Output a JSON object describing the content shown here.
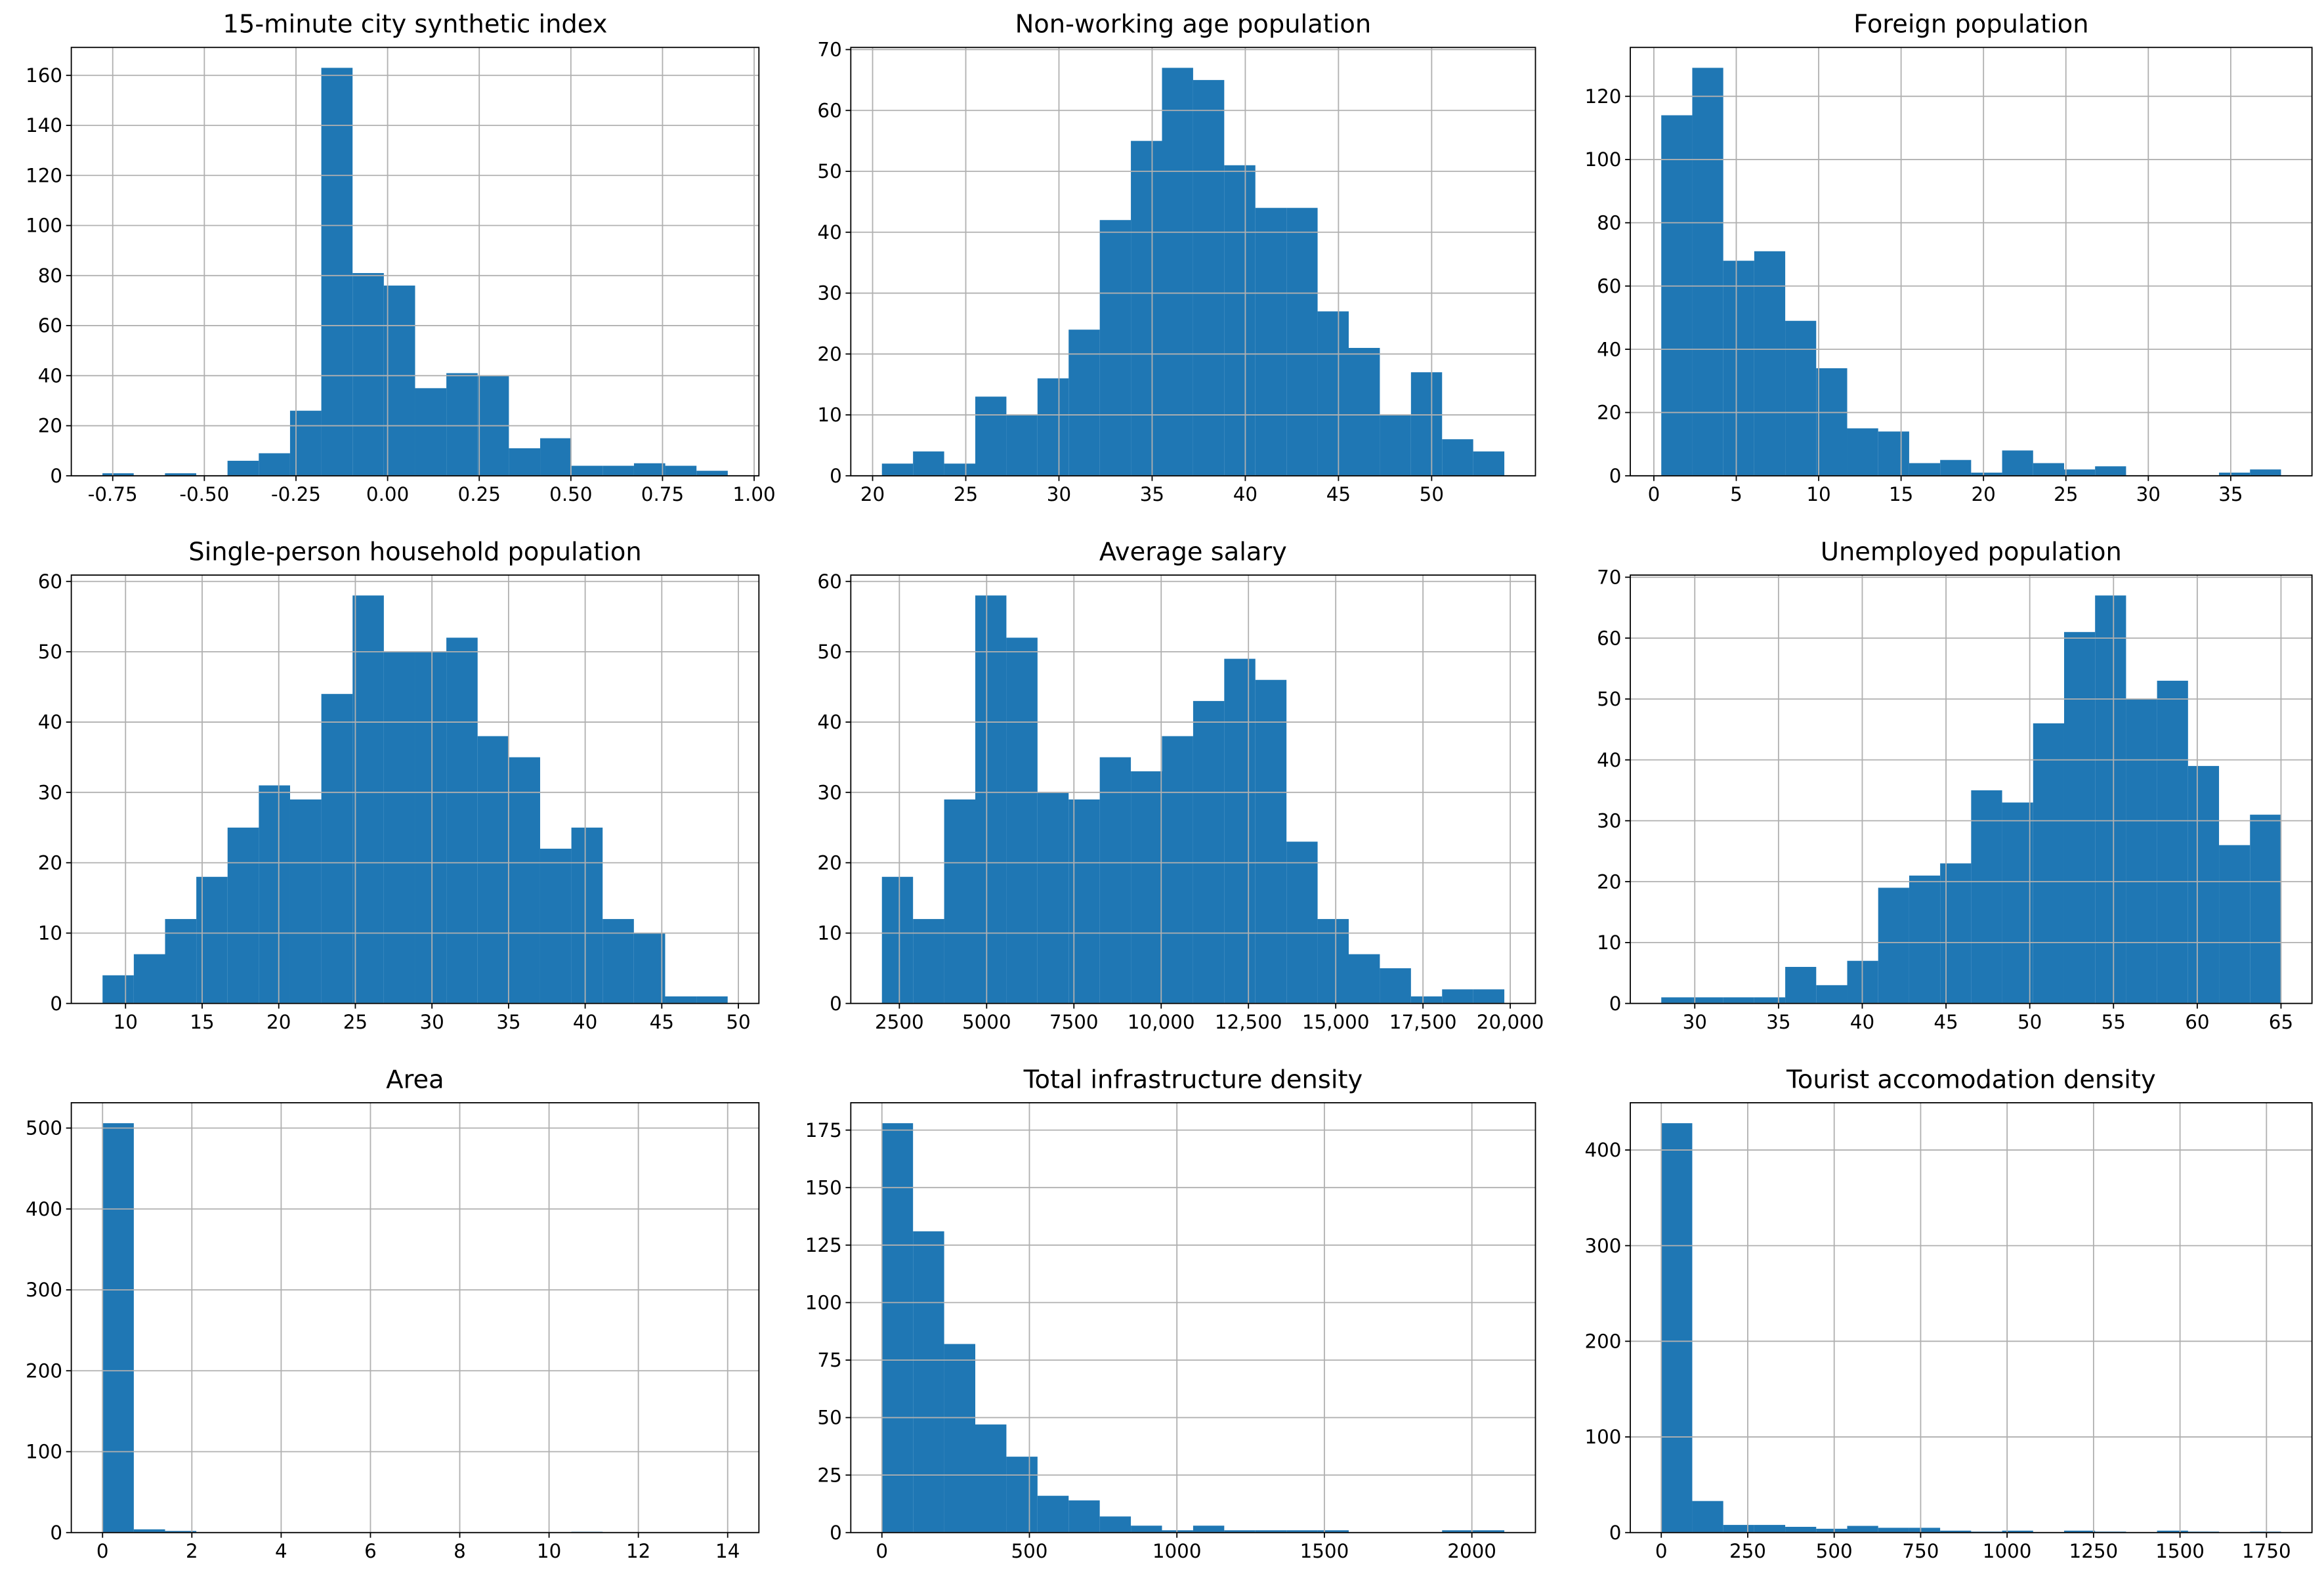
{
  "chart_data": [
    {
      "type": "histogram",
      "title": "15-minute city synthetic index",
      "color": "#1f77b4",
      "grid": true,
      "bins": [
        -0.778,
        -0.6927,
        -0.6074,
        -0.5221,
        -0.4368,
        -0.3515,
        -0.2662,
        -0.1809,
        -0.0956,
        -0.0103,
        0.075,
        0.1603,
        0.2456,
        0.3309,
        0.4162,
        0.5015,
        0.5868,
        0.6721,
        0.7574,
        0.8427,
        0.928
      ],
      "values": [
        1,
        0,
        1,
        0,
        6,
        9,
        26,
        163,
        81,
        76,
        35,
        41,
        40,
        11,
        15,
        4,
        4,
        5,
        4,
        2
      ],
      "xlim": [
        -0.863,
        1.013
      ],
      "ylim": [
        0,
        171.15
      ],
      "xticks": [
        -0.75,
        {
          "value": -0.5,
          "label": "-0.50"
        },
        -0.25,
        {
          "value": 0,
          "label": "0.00"
        },
        0.25,
        {
          "value": 0.5,
          "label": "0.50"
        },
        0.75,
        {
          "value": 1,
          "label": "1.00"
        }
      ],
      "yticks": [
        0,
        20,
        40,
        60,
        80,
        100,
        120,
        140,
        160
      ]
    },
    {
      "type": "histogram",
      "title": "Non-working age population",
      "color": "#1f77b4",
      "grid": true,
      "bins": [
        20.5,
        22.17,
        23.84,
        25.51,
        27.18,
        28.85,
        30.52,
        32.19,
        33.86,
        35.53,
        37.2,
        38.87,
        40.54,
        42.21,
        43.88,
        45.55,
        47.22,
        48.89,
        50.56,
        52.23,
        53.9
      ],
      "values": [
        2,
        4,
        2,
        13,
        10,
        16,
        24,
        42,
        55,
        67,
        65,
        51,
        44,
        44,
        27,
        21,
        10,
        17,
        6,
        4
      ],
      "xlim": [
        18.83,
        55.57
      ],
      "ylim": [
        0,
        70.35
      ],
      "xticks": [
        20,
        25,
        30,
        35,
        40,
        45,
        50
      ],
      "yticks": [
        0,
        10,
        20,
        30,
        40,
        50,
        60,
        70
      ]
    },
    {
      "type": "histogram",
      "title": "Foreign population",
      "color": "#1f77b4",
      "grid": true,
      "bins": [
        0.45,
        2.33,
        4.21,
        6.09,
        7.97,
        9.85,
        11.73,
        13.61,
        15.49,
        17.37,
        19.25,
        21.13,
        23.01,
        24.89,
        26.77,
        28.65,
        30.53,
        32.41,
        34.29,
        36.17,
        38.05
      ],
      "values": [
        114,
        129,
        68,
        71,
        49,
        34,
        15,
        14,
        4,
        5,
        1,
        8,
        4,
        2,
        3,
        0,
        0,
        0,
        1,
        2
      ],
      "xlim": [
        -1.43,
        39.93
      ],
      "ylim": [
        0,
        135.45
      ],
      "xticks": [
        0,
        5,
        10,
        15,
        20,
        25,
        30,
        35
      ],
      "yticks": [
        0,
        20,
        40,
        60,
        80,
        100,
        120
      ]
    },
    {
      "type": "histogram",
      "title": "Single-person household population",
      "color": "#1f77b4",
      "grid": true,
      "bins": [
        8.5,
        10.54,
        12.58,
        14.62,
        16.66,
        18.7,
        20.74,
        22.78,
        24.82,
        26.86,
        28.9,
        30.94,
        32.98,
        35.02,
        37.06,
        39.1,
        41.14,
        43.18,
        45.22,
        47.26,
        49.3
      ],
      "values": [
        4,
        7,
        12,
        18,
        25,
        31,
        29,
        44,
        58,
        50,
        50,
        52,
        38,
        35,
        22,
        25,
        12,
        10,
        1,
        1
      ],
      "xlim": [
        6.46,
        51.34
      ],
      "ylim": [
        0,
        60.9
      ],
      "xticks": [
        10,
        15,
        20,
        25,
        30,
        35,
        40,
        45,
        50
      ],
      "yticks": [
        0,
        10,
        20,
        30,
        40,
        50,
        60
      ]
    },
    {
      "type": "histogram",
      "title": "Average salary",
      "color": "#1f77b4",
      "grid": true,
      "bins": [
        2000,
        2891.5,
        3783,
        4674.5,
        5566,
        6457.5,
        7349,
        8240.5,
        9132,
        10023.5,
        10915,
        11806.5,
        12698,
        13589.5,
        14481,
        15372.5,
        16264,
        17155.5,
        18047,
        18938.5,
        19830
      ],
      "values": [
        18,
        12,
        29,
        58,
        52,
        30,
        29,
        35,
        33,
        38,
        43,
        49,
        46,
        23,
        12,
        7,
        5,
        1,
        2,
        2
      ],
      "xlim": [
        1108.5,
        20721.5
      ],
      "ylim": [
        0,
        60.9
      ],
      "xticks": [
        2500,
        5000,
        7500,
        {
          "value": 10000,
          "label": "10,000"
        },
        {
          "value": 12500,
          "label": "12,500"
        },
        {
          "value": 15000,
          "label": "15,000"
        },
        {
          "value": 17500,
          "label": "17,500"
        },
        {
          "value": 20000,
          "label": "20,000"
        }
      ],
      "yticks": [
        0,
        10,
        20,
        30,
        40,
        50,
        60
      ]
    },
    {
      "type": "histogram",
      "title": "Unemployed population",
      "color": "#1f77b4",
      "grid": true,
      "bins": [
        28,
        29.85,
        31.7,
        33.55,
        35.4,
        37.25,
        39.1,
        40.95,
        42.8,
        44.65,
        46.5,
        48.35,
        50.2,
        52.05,
        53.9,
        55.75,
        57.6,
        59.45,
        61.3,
        63.15,
        65
      ],
      "values": [
        1,
        1,
        1,
        1,
        6,
        3,
        7,
        19,
        21,
        23,
        35,
        33,
        46,
        61,
        67,
        50,
        53,
        39,
        26,
        31
      ],
      "xlim": [
        26.15,
        66.85
      ],
      "ylim": [
        0,
        70.35
      ],
      "xticks": [
        30,
        35,
        40,
        45,
        50,
        55,
        60,
        65
      ],
      "yticks": [
        0,
        10,
        20,
        30,
        40,
        50,
        60,
        70
      ]
    },
    {
      "type": "histogram",
      "title": "Area",
      "color": "#1f77b4",
      "grid": true,
      "bins": [
        0,
        0.7,
        1.4,
        2.1,
        2.8,
        3.5,
        4.2,
        4.9,
        5.6,
        6.3,
        7,
        7.7,
        8.4,
        9.1,
        9.8,
        10.5,
        11.2,
        11.9,
        12.6,
        13.3,
        14
      ],
      "values": [
        506,
        4,
        2,
        0,
        0,
        0,
        0,
        0,
        0,
        0,
        0,
        0,
        0,
        0,
        0,
        1,
        0,
        0,
        0,
        0
      ],
      "xlim": [
        -0.7,
        14.7
      ],
      "ylim": [
        0,
        531.3
      ],
      "xticks": [
        0,
        2,
        4,
        6,
        8,
        10,
        12,
        14
      ],
      "yticks": [
        0,
        100,
        200,
        300,
        400,
        500
      ]
    },
    {
      "type": "histogram",
      "title": "Total infrastructure density",
      "color": "#1f77b4",
      "grid": true,
      "bins": [
        0,
        105.5,
        211,
        316.5,
        422,
        527.5,
        633,
        738.5,
        844,
        949.5,
        1055,
        1160.5,
        1266,
        1371.5,
        1477,
        1582.5,
        1688,
        1793.5,
        1899,
        2004.5,
        2110
      ],
      "values": [
        178,
        131,
        82,
        47,
        33,
        16,
        14,
        7,
        3,
        1,
        3,
        1,
        1,
        1,
        1,
        0,
        0,
        0,
        1,
        1
      ],
      "xlim": [
        -105.5,
        2215.5
      ],
      "ylim": [
        0,
        186.9
      ],
      "xticks": [
        0,
        500,
        1000,
        1500,
        2000
      ],
      "yticks": [
        0,
        25,
        50,
        75,
        100,
        125,
        150,
        175
      ]
    },
    {
      "type": "histogram",
      "title": "Tourist accomodation density",
      "color": "#1f77b4",
      "grid": true,
      "bins": [
        0,
        89.6,
        179.2,
        268.8,
        358.4,
        448,
        537.6,
        627.2,
        716.8,
        806.4,
        896,
        985.6,
        1075.2,
        1164.8,
        1254.4,
        1344,
        1433.6,
        1523.2,
        1612.8,
        1702.4,
        1792
      ],
      "values": [
        428,
        33,
        8,
        8,
        6,
        4,
        7,
        5,
        5,
        2,
        1,
        2,
        0,
        2,
        1,
        0,
        2,
        1,
        0,
        1
      ],
      "xlim": [
        -89.6,
        1881.6
      ],
      "ylim": [
        0,
        449.4
      ],
      "xticks": [
        0,
        250,
        500,
        750,
        1000,
        1250,
        1500,
        1750
      ],
      "yticks": [
        0,
        100,
        200,
        300,
        400
      ]
    }
  ]
}
